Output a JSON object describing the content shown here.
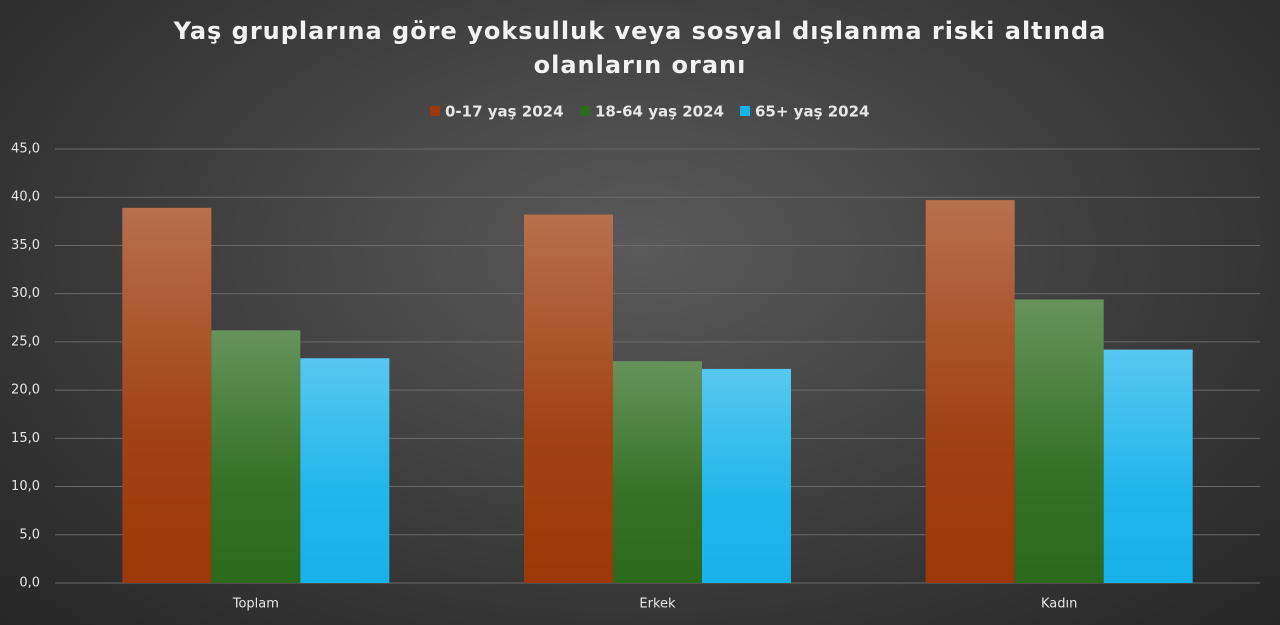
{
  "chart_data": {
    "type": "bar",
    "title": "Yaş gruplarına göre yoksulluk veya sosyal dışlanma riski altında olanların oranı",
    "categories": [
      "Toplam",
      "Erkek",
      "Kadın"
    ],
    "series": [
      {
        "name": "0-17 yaş 2024",
        "color": "#9c3808",
        "values": [
          38.9,
          38.2,
          39.7
        ]
      },
      {
        "name": "18-64 yaş 2024",
        "color": "#2b6a1c",
        "values": [
          26.2,
          23.0,
          29.4
        ]
      },
      {
        "name": "65+ yaş 2024",
        "color": "#16b2ea",
        "values": [
          23.3,
          22.2,
          24.2
        ]
      }
    ],
    "ylim": [
      0,
      45
    ],
    "yticks": [
      {
        "value": 0,
        "label": "0,0"
      },
      {
        "value": 5,
        "label": "5,0"
      },
      {
        "value": 10,
        "label": "10,0"
      },
      {
        "value": 15,
        "label": "15,0"
      },
      {
        "value": 20,
        "label": "20,0"
      },
      {
        "value": 25,
        "label": "25,0"
      },
      {
        "value": 30,
        "label": "30,0"
      },
      {
        "value": 35,
        "label": "35,0"
      },
      {
        "value": 40,
        "label": "40,0"
      },
      {
        "value": 45,
        "label": "45,0"
      }
    ],
    "grid": true
  }
}
